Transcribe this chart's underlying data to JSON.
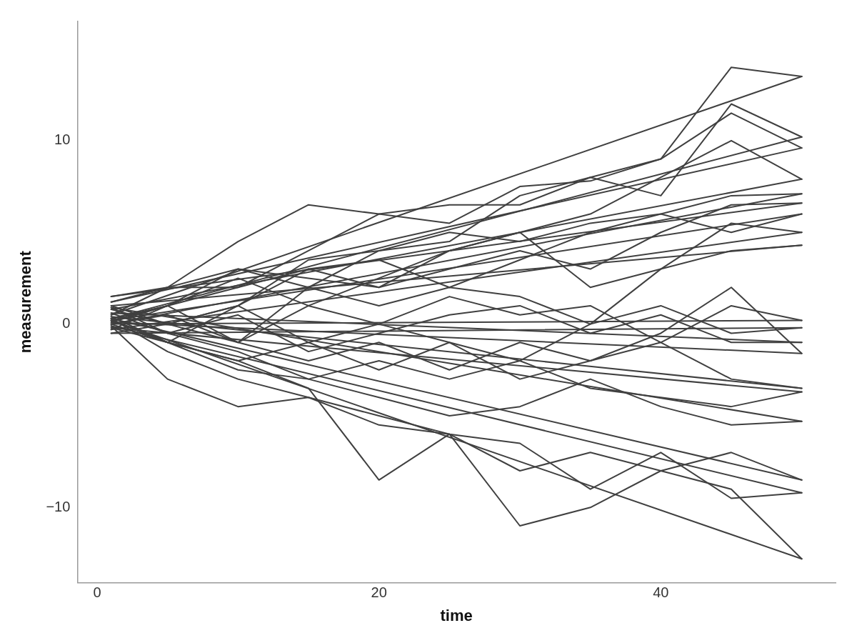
{
  "chart_data": {
    "type": "line",
    "xlabel": "time",
    "ylabel": "measurement",
    "xlim": [
      -1.4,
      52.4
    ],
    "ylim": [
      -14.1,
      16.5
    ],
    "xticks": [
      0,
      20,
      40
    ],
    "yticks": [
      -10,
      0,
      10
    ],
    "grid": false,
    "legend": false,
    "series": [
      {
        "color": "#404040",
        "x": [
          1,
          5,
          10,
          15,
          20,
          25,
          30,
          35,
          40,
          45,
          50
        ],
        "values": [
          0.5,
          2,
          4.5,
          6.5,
          6,
          6.5,
          6.5,
          8,
          9,
          14,
          13.5
        ]
      },
      {
        "color": "#404040",
        "x": [
          1,
          5,
          10,
          15,
          20,
          25,
          30,
          35,
          40,
          45,
          50
        ],
        "values": [
          0.3,
          1,
          3,
          2,
          4,
          4.5,
          7,
          8,
          7,
          12,
          10.2
        ]
      },
      {
        "color": "#404040",
        "x": [
          1,
          5,
          10,
          15,
          20,
          25,
          30,
          35,
          40,
          45,
          50
        ],
        "values": [
          1.2,
          2,
          2,
          4,
          6,
          5.5,
          7.5,
          7.8,
          9,
          11.5,
          9.6
        ]
      },
      {
        "color": "#404040",
        "x": [
          1,
          5,
          10,
          15,
          20,
          25,
          30,
          35,
          40,
          45,
          50
        ],
        "values": [
          0.8,
          0,
          1,
          3,
          2,
          4,
          5,
          6,
          8,
          10,
          7.9
        ]
      },
      {
        "color": "#404040",
        "x": [
          1,
          5,
          10,
          15,
          20,
          25,
          30,
          35,
          40,
          45,
          50
        ],
        "values": [
          0,
          -1,
          1,
          3.5,
          4,
          5,
          4.5,
          5.5,
          6,
          7,
          7.1
        ]
      },
      {
        "color": "#404040",
        "x": [
          1,
          5,
          10,
          15,
          20,
          25,
          30,
          35,
          40,
          45,
          50
        ],
        "values": [
          1.5,
          2,
          3,
          2.5,
          2,
          3,
          4,
          3,
          5,
          6.5,
          6.6
        ]
      },
      {
        "color": "#404040",
        "x": [
          1,
          5,
          10,
          15,
          20,
          25,
          30,
          35,
          40,
          45,
          50
        ],
        "values": [
          0.2,
          1,
          2,
          3,
          3.5,
          2,
          3.5,
          5,
          6,
          5,
          6
        ]
      },
      {
        "color": "#404040",
        "x": [
          1,
          5,
          10,
          15,
          20,
          25,
          30,
          35,
          40,
          45,
          50
        ],
        "values": [
          -0.3,
          1,
          2.5,
          1,
          2.5,
          4,
          5,
          2,
          3,
          5.5,
          5
        ]
      },
      {
        "color": "#404040",
        "x": [
          1,
          5,
          10,
          15,
          20,
          25,
          30,
          35,
          40,
          45,
          50
        ],
        "values": [
          1,
          0,
          -1,
          2,
          1,
          2,
          1.5,
          0,
          3,
          4,
          4.3
        ]
      },
      {
        "color": "#404040",
        "x": [
          1,
          5,
          10,
          15,
          20,
          25,
          30,
          35,
          40,
          45,
          50
        ],
        "values": [
          0,
          0.5,
          -1,
          1,
          0,
          1.5,
          0.5,
          1,
          -1,
          1,
          0.2
        ]
      },
      {
        "color": "#404040",
        "x": [
          1,
          5,
          10,
          15,
          20,
          25,
          30,
          35,
          40,
          45,
          50
        ],
        "values": [
          -0.5,
          0,
          1,
          -1,
          0,
          -1,
          -2,
          0,
          1,
          -0.5,
          -0.2
        ]
      },
      {
        "color": "#404040",
        "x": [
          1,
          5,
          10,
          15,
          20,
          25,
          30,
          35,
          40,
          45,
          50
        ],
        "values": [
          0.6,
          -0.5,
          0.5,
          -1.5,
          -0.5,
          0.5,
          1,
          -0.5,
          0.5,
          -1,
          -1
        ]
      },
      {
        "color": "#404040",
        "x": [
          1,
          5,
          10,
          15,
          20,
          25,
          30,
          35,
          40,
          45,
          50
        ],
        "values": [
          0.1,
          1,
          -1,
          -2,
          -1,
          -2.5,
          -1,
          -2,
          -0.5,
          2,
          -1.6
        ]
      },
      {
        "color": "#404040",
        "x": [
          1,
          5,
          10,
          15,
          20,
          25,
          30,
          35,
          40,
          45,
          50
        ],
        "values": [
          0.4,
          -1,
          -2,
          -1,
          -2.5,
          -1,
          -3,
          -2,
          -1,
          -3,
          -3.5
        ]
      },
      {
        "color": "#404040",
        "x": [
          1,
          5,
          10,
          15,
          20,
          25,
          30,
          35,
          40,
          45,
          50
        ],
        "values": [
          -0.2,
          -1,
          -2.5,
          -3,
          -2,
          -3,
          -2,
          -3.5,
          -4,
          -4.5,
          -3.7
        ]
      },
      {
        "color": "#404040",
        "x": [
          1,
          5,
          10,
          15,
          20,
          25,
          30,
          35,
          40,
          45,
          50
        ],
        "values": [
          0.9,
          -0.5,
          -1.5,
          -3,
          -4,
          -5,
          -4.5,
          -3,
          -4.5,
          -5.5,
          -5.3
        ]
      },
      {
        "color": "#404040",
        "x": [
          1,
          5,
          10,
          15,
          20,
          25,
          30,
          35,
          40,
          45,
          50
        ],
        "values": [
          0.3,
          -1.5,
          -3,
          -4,
          -5.5,
          -6,
          -8,
          -7,
          -8,
          -7,
          -8.5
        ]
      },
      {
        "color": "#404040",
        "x": [
          1,
          5,
          10,
          15,
          20,
          25,
          30,
          35,
          40,
          45,
          50
        ],
        "values": [
          -0.1,
          -3,
          -4.5,
          -4,
          -5,
          -6,
          -6.5,
          -9,
          -7,
          -9.5,
          -9.2
        ]
      },
      {
        "color": "#404040",
        "x": [
          1,
          5,
          10,
          15,
          20,
          25,
          30,
          35,
          40,
          45,
          50
        ],
        "values": [
          0.2,
          -1,
          -2,
          -3.5,
          -8.5,
          -6,
          -11,
          -10,
          -8,
          -9,
          -12.8
        ]
      },
      {
        "color": "#404040",
        "x": [
          1,
          50
        ],
        "values": [
          0.5,
          13.5
        ]
      },
      {
        "color": "#404040",
        "x": [
          1,
          50
        ],
        "values": [
          0.3,
          10.2
        ]
      },
      {
        "color": "#404040",
        "x": [
          1,
          50
        ],
        "values": [
          1.2,
          9.6
        ]
      },
      {
        "color": "#404040",
        "x": [
          1,
          50
        ],
        "values": [
          0.8,
          7.9
        ]
      },
      {
        "color": "#404040",
        "x": [
          1,
          50
        ],
        "values": [
          0,
          7.1
        ]
      },
      {
        "color": "#404040",
        "x": [
          1,
          50
        ],
        "values": [
          1.5,
          6.6
        ]
      },
      {
        "color": "#404040",
        "x": [
          1,
          50
        ],
        "values": [
          0.2,
          6
        ]
      },
      {
        "color": "#404040",
        "x": [
          1,
          50
        ],
        "values": [
          -0.3,
          5
        ]
      },
      {
        "color": "#404040",
        "x": [
          1,
          50
        ],
        "values": [
          1,
          4.3
        ]
      },
      {
        "color": "#404040",
        "x": [
          1,
          50
        ],
        "values": [
          0,
          0.2
        ]
      },
      {
        "color": "#404040",
        "x": [
          1,
          50
        ],
        "values": [
          -0.5,
          -0.2
        ]
      },
      {
        "color": "#404040",
        "x": [
          1,
          50
        ],
        "values": [
          0.6,
          -1
        ]
      },
      {
        "color": "#404040",
        "x": [
          1,
          50
        ],
        "values": [
          0.1,
          -1.6
        ]
      },
      {
        "color": "#404040",
        "x": [
          1,
          50
        ],
        "values": [
          0.4,
          -3.5
        ]
      },
      {
        "color": "#404040",
        "x": [
          1,
          50
        ],
        "values": [
          -0.2,
          -3.7
        ]
      },
      {
        "color": "#404040",
        "x": [
          1,
          50
        ],
        "values": [
          0.9,
          -5.3
        ]
      },
      {
        "color": "#404040",
        "x": [
          1,
          50
        ],
        "values": [
          0.3,
          -8.5
        ]
      },
      {
        "color": "#404040",
        "x": [
          1,
          50
        ],
        "values": [
          -0.1,
          -9.2
        ]
      },
      {
        "color": "#404040",
        "x": [
          1,
          50
        ],
        "values": [
          0.2,
          -12.8
        ]
      }
    ]
  }
}
